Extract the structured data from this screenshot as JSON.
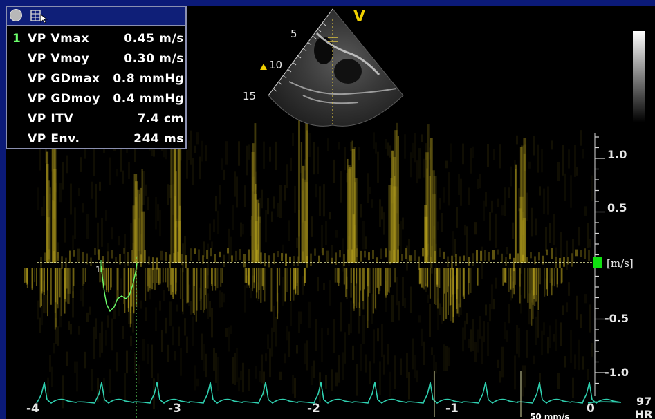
{
  "measurements": [
    {
      "index": "1",
      "label": "VP Vmax",
      "value": "0.45 m/s"
    },
    {
      "index": "",
      "label": "VP Vmoy",
      "value": "0.30 m/s"
    },
    {
      "index": "",
      "label": "VP GDmax",
      "value": "0.8 mmHg"
    },
    {
      "index": "",
      "label": "VP GDmoy",
      "value": "0.4 mmHg"
    },
    {
      "index": "",
      "label": "VP ITV",
      "value": "7.4 cm"
    },
    {
      "index": "",
      "label": "VP Env.",
      "value": "244 ms"
    }
  ],
  "trace_marker": "1",
  "view_label": "V",
  "depth_labels": [
    "5",
    "10",
    "15"
  ],
  "velocity_ticks": [
    "1.0",
    "0.5",
    "-0.5",
    "-1.0"
  ],
  "velocity_unit": "[m/s]",
  "time_ticks": [
    "-4",
    "-3",
    "-2",
    "-1",
    "0"
  ],
  "sweep_speed": "50 mm/s",
  "heart_rate": {
    "value": "97",
    "label": "HR"
  },
  "colors": {
    "background": "#0b1a78",
    "doppler": "#c8b020",
    "ecg": "#2fd0b0",
    "trace": "#6cff6c",
    "baseline": "#e8e8a0",
    "handle": "#10e010"
  },
  "icons": {
    "record": "record-icon",
    "calculator": "calculator-icon"
  }
}
